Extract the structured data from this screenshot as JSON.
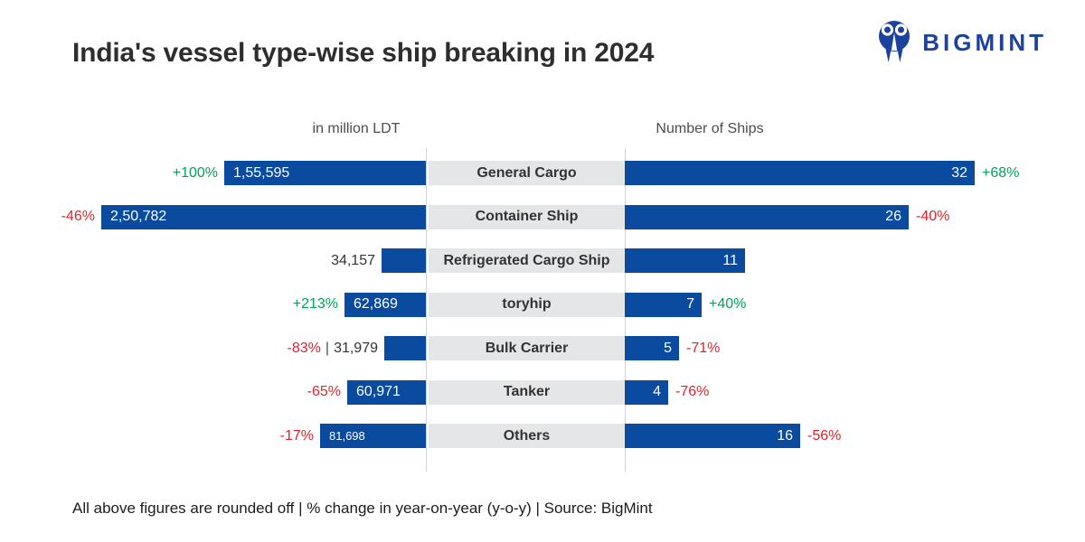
{
  "title": "India's vessel type-wise ship breaking in 2024",
  "logo": {
    "text": "BIGMINT",
    "icon": "two-people-circle-mark"
  },
  "axis": {
    "left_header": "in million LDT",
    "right_header": "Number of Ships"
  },
  "footer": "All above figures are rounded off | % change in year-on-year (y-o-y) | Source: BigMint",
  "colors": {
    "bar_blue": "#0a4a9f",
    "green": "#00a35a",
    "red": "#e8212a",
    "label_bg": "#e5e6e7",
    "logo_blue": "#1d429e"
  },
  "chart_data": {
    "type": "bar",
    "layout": "bidirectional-horizontal (butterfly chart, center category labels, left bars grow leftward, right bars grow rightward)",
    "title": "India's vessel type-wise ship breaking in 2024",
    "categories": [
      "General Cargo",
      "Container Ship",
      "Refrigerated Cargo Ship",
      "toryhip",
      "Bulk Carrier",
      "Tanker",
      "Others"
    ],
    "series": [
      {
        "name": "in million LDT",
        "side": "left",
        "values": [
          155595,
          250782,
          34157,
          62869,
          31979,
          60971,
          81698
        ],
        "labels": [
          "1,55,595",
          "2,50,782",
          "34,157",
          "62,869",
          "31,979",
          "60,971",
          "81,698"
        ],
        "pct_change": [
          "+100%",
          "-46%",
          null,
          "+213%",
          "-83%",
          "-65%",
          "-17%"
        ],
        "value_outside": [
          false,
          false,
          true,
          false,
          true,
          false,
          false
        ],
        "value_small": [
          false,
          false,
          false,
          false,
          false,
          false,
          true
        ],
        "max_value": 250782
      },
      {
        "name": "Number of Ships",
        "side": "right",
        "values": [
          32,
          26,
          11,
          7,
          5,
          4,
          16
        ],
        "labels": [
          "32",
          "26",
          "11",
          "7",
          "5",
          "4",
          "16"
        ],
        "pct_change": [
          "+68%",
          "-40%",
          null,
          "+40%",
          "-71%",
          "-76%",
          "-56%"
        ],
        "max_value": 32
      }
    ],
    "grid": false,
    "legend": false,
    "notes": "positive % change shown green, negative % change shown red"
  }
}
